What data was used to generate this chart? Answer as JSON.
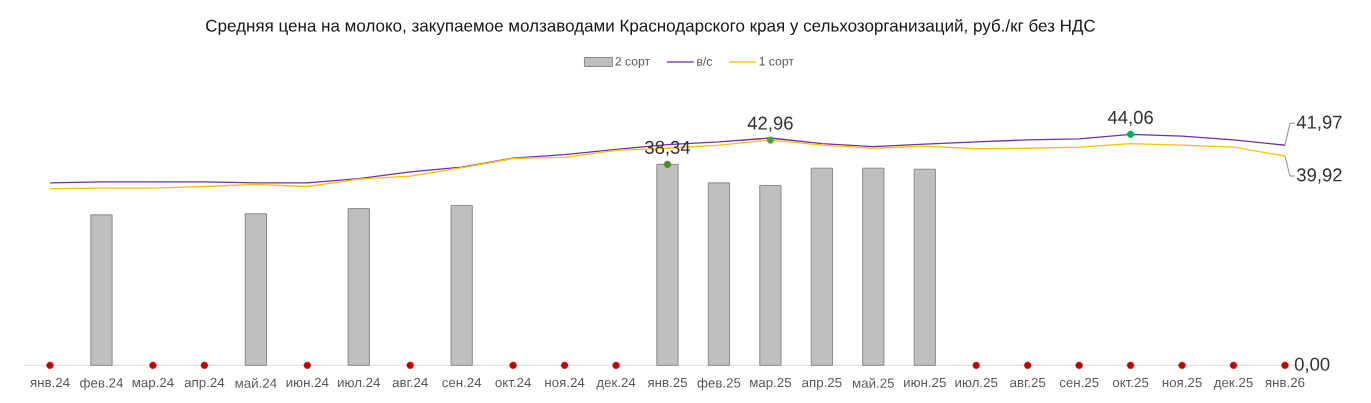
{
  "chart_data": {
    "type": "bar",
    "title": "Средняя цена на молоко, закупаемое молзаводами Краснодарского края у сельхозорганизаций, руб./кг без НДС",
    "categories": [
      "янв.24",
      "фев.24",
      "мар.24",
      "апр.24",
      "май.24",
      "июн.24",
      "июл.24",
      "авг.24",
      "сен.24",
      "окт.24",
      "ноя.24",
      "дек.24",
      "янв.25",
      "фев.25",
      "мар.25",
      "апр.25",
      "май.25",
      "июн.25",
      "июл.25",
      "авг.25",
      "сен.25",
      "окт.25",
      "ноя.25",
      "дек.25",
      "янв.26"
    ],
    "series": [
      {
        "name": "2 сорт",
        "color": "#bfbfbf",
        "values": [
          null,
          28.7,
          null,
          null,
          28.9,
          null,
          29.9,
          null,
          30.5,
          null,
          null,
          null,
          38.34,
          34.8,
          34.3,
          37.6,
          37.6,
          37.4,
          null,
          null,
          null,
          null,
          null,
          null,
          null
        ]
      },
      {
        "name": "в/с",
        "type": "line",
        "color": "#7030a0",
        "values": [
          34.8,
          35.0,
          35.0,
          35.0,
          34.8,
          34.8,
          35.6,
          36.9,
          37.8,
          39.5,
          40.2,
          41.2,
          42.1,
          42.6,
          43.35,
          42.3,
          41.7,
          42.2,
          42.6,
          43.0,
          43.2,
          44.06,
          43.7,
          43.0,
          41.97
        ],
        "value_labels": [
          null,
          null,
          null,
          null,
          null,
          null,
          null,
          null,
          null,
          null,
          null,
          null,
          null,
          null,
          null,
          null,
          null,
          null,
          null,
          null,
          null,
          null,
          null,
          null,
          "41,97"
        ]
      },
      {
        "name": "1 сорт",
        "type": "line",
        "color": "#ffc000",
        "values": [
          33.7,
          33.8,
          33.8,
          34.1,
          34.5,
          34.1,
          35.5,
          36.1,
          37.7,
          39.45,
          39.65,
          41.0,
          41.4,
          42.0,
          42.96,
          42.0,
          41.4,
          41.8,
          41.3,
          41.4,
          41.6,
          42.3,
          42.0,
          41.6,
          39.92
        ],
        "value_labels": [
          null,
          null,
          null,
          null,
          null,
          null,
          null,
          null,
          null,
          null,
          null,
          null,
          null,
          null,
          null,
          null,
          null,
          null,
          null,
          null,
          null,
          null,
          null,
          null,
          "39,92"
        ]
      },
      {
        "type": "scatter",
        "marker": "circle",
        "color": "#c00000",
        "values": [
          0,
          null,
          0,
          0,
          null,
          0,
          null,
          0,
          null,
          0,
          0,
          0,
          null,
          null,
          null,
          null,
          null,
          null,
          0,
          0,
          0,
          0,
          0,
          0,
          0
        ],
        "value_labels": [
          null,
          null,
          null,
          null,
          null,
          null,
          null,
          null,
          null,
          null,
          null,
          null,
          null,
          null,
          null,
          null,
          null,
          null,
          null,
          null,
          null,
          null,
          null,
          null,
          "0,00"
        ]
      },
      {
        "type": "scatter",
        "marker": "circle",
        "colors": [
          null,
          null,
          null,
          null,
          null,
          null,
          null,
          null,
          null,
          null,
          null,
          null,
          "#4d8b31",
          null,
          "#4aa243",
          null,
          null,
          null,
          null,
          null,
          null,
          "#00b050",
          null,
          null,
          null
        ],
        "values": [
          null,
          null,
          null,
          null,
          null,
          null,
          null,
          null,
          null,
          null,
          null,
          null,
          38.34,
          null,
          42.96,
          null,
          null,
          null,
          null,
          null,
          null,
          44.06,
          null,
          null,
          null
        ],
        "value_labels": [
          null,
          null,
          null,
          null,
          null,
          null,
          null,
          null,
          null,
          null,
          null,
          null,
          "38,34",
          null,
          "42,96",
          null,
          null,
          null,
          null,
          null,
          null,
          "44,06",
          null,
          null,
          null
        ]
      }
    ],
    "legend": "top",
    "tick_labels": "x"
  }
}
